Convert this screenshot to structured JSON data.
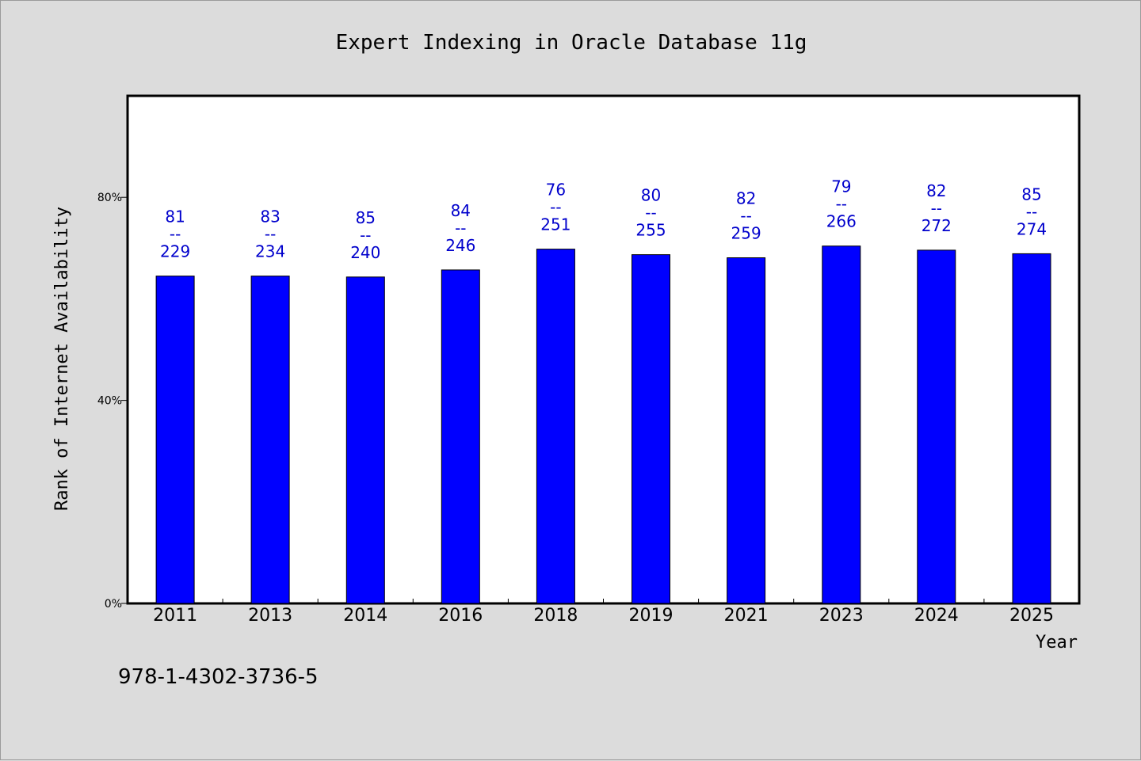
{
  "chart_data": {
    "type": "bar",
    "title": "Expert Indexing in Oracle Database 11g",
    "xlabel": "Year",
    "ylabel": "Rank of Internet Availability",
    "ylim": [
      0,
      100
    ],
    "yticks": [
      {
        "value": 0,
        "label": "0%"
      },
      {
        "value": 40,
        "label": "40%"
      },
      {
        "value": 80,
        "label": "80%"
      }
    ],
    "grid": false,
    "categories": [
      "2011",
      "2013",
      "2014",
      "2016",
      "2018",
      "2019",
      "2021",
      "2023",
      "2024",
      "2025"
    ],
    "values": [
      64.5,
      64.5,
      64.3,
      65.7,
      69.8,
      68.7,
      68.1,
      70.4,
      69.6,
      68.9
    ],
    "bar_labels_top": [
      "81",
      "83",
      "85",
      "84",
      "76",
      "80",
      "82",
      "79",
      "82",
      "85"
    ],
    "bar_labels_separator": "--",
    "bar_labels_bottom": [
      "229",
      "234",
      "240",
      "246",
      "251",
      "255",
      "259",
      "266",
      "272",
      "274"
    ],
    "colors": {
      "bar": "#0000ff",
      "bar_stroke": "#000000",
      "label": "#0000cc",
      "plot_background": "#ffffff",
      "page_background": "#dcdcdc"
    }
  },
  "footer": {
    "isbn": "978-1-4302-3736-5"
  }
}
